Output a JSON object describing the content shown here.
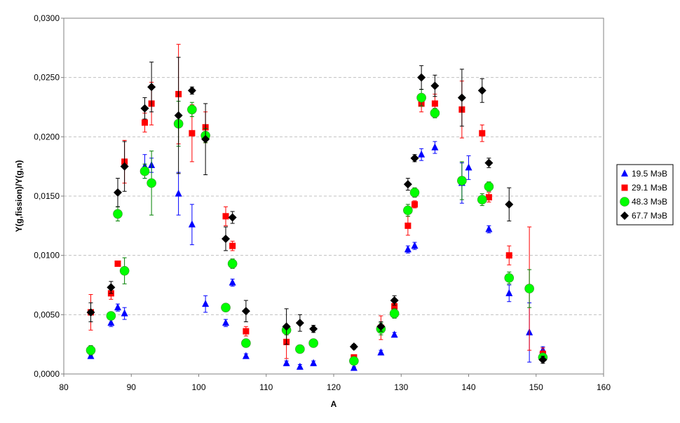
{
  "chart_data": {
    "type": "scatter",
    "xlabel": "A",
    "ylabel": "Y(g,fission)/Y(g,n)",
    "xlim": [
      80,
      160
    ],
    "ylim": [
      0,
      0.03
    ],
    "x_ticks": [
      80,
      90,
      100,
      110,
      120,
      130,
      140,
      150,
      160
    ],
    "x_tick_labels": [
      "80",
      "90",
      "100",
      "110",
      "120",
      "130",
      "140",
      "150",
      "160"
    ],
    "y_ticks": [
      0,
      0.005,
      0.01,
      0.015,
      0.02,
      0.025,
      0.03
    ],
    "y_tick_labels": [
      "0,0000",
      "0,0050",
      "0,0100",
      "0,0150",
      "0,0200",
      "0,0250",
      "0,0300"
    ],
    "grid": "horizontal dashed",
    "legend_position": "right",
    "series": [
      {
        "name": "19.5 МэВ",
        "marker": "triangle",
        "color": "#0000ff",
        "points": [
          {
            "x": 84,
            "y": 0.0015,
            "err": 0.0002
          },
          {
            "x": 87,
            "y": 0.0043,
            "err": 0.0003
          },
          {
            "x": 88,
            "y": 0.0056,
            "err": 0.0003
          },
          {
            "x": 89,
            "y": 0.0051,
            "err": 0.0005
          },
          {
            "x": 92,
            "y": 0.0175,
            "err": 0.001
          },
          {
            "x": 93,
            "y": 0.0176,
            "err": 0.0006
          },
          {
            "x": 97,
            "y": 0.0152,
            "err": 0.0018
          },
          {
            "x": 99,
            "y": 0.0126,
            "err": 0.0017
          },
          {
            "x": 101,
            "y": 0.0059,
            "err": 0.0007
          },
          {
            "x": 104,
            "y": 0.0043,
            "err": 0.0003
          },
          {
            "x": 105,
            "y": 0.0077,
            "err": 0.0003
          },
          {
            "x": 107,
            "y": 0.0015,
            "err": 0.0002
          },
          {
            "x": 113,
            "y": 0.0009,
            "err": 0.0002
          },
          {
            "x": 115,
            "y": 0.0006,
            "err": 0.0002
          },
          {
            "x": 117,
            "y": 0.0009,
            "err": 0.0002
          },
          {
            "x": 123,
            "y": 0.0005,
            "err": 0.0001
          },
          {
            "x": 127,
            "y": 0.0018,
            "err": 0.0002
          },
          {
            "x": 129,
            "y": 0.0033,
            "err": 0.0002
          },
          {
            "x": 131,
            "y": 0.0105,
            "err": 0.0003
          },
          {
            "x": 132,
            "y": 0.0108,
            "err": 0.0003
          },
          {
            "x": 133,
            "y": 0.0185,
            "err": 0.0005
          },
          {
            "x": 135,
            "y": 0.0191,
            "err": 0.0005
          },
          {
            "x": 139,
            "y": 0.0161,
            "err": 0.0017
          },
          {
            "x": 140,
            "y": 0.0174,
            "err": 0.001
          },
          {
            "x": 143,
            "y": 0.0122,
            "err": 0.0003
          },
          {
            "x": 146,
            "y": 0.0068,
            "err": 0.0007
          },
          {
            "x": 149,
            "y": 0.0035,
            "err": 0.0025
          },
          {
            "x": 151,
            "y": 0.002,
            "err": 0.0003
          }
        ]
      },
      {
        "name": "29.1 МэВ",
        "marker": "square",
        "color": "#ff0000",
        "points": [
          {
            "x": 84,
            "y": 0.0052,
            "err": 0.0015
          },
          {
            "x": 87,
            "y": 0.0068,
            "err": 0.0005
          },
          {
            "x": 88,
            "y": 0.0093,
            "err": 0.0002
          },
          {
            "x": 89,
            "y": 0.0179,
            "err": 0.0018
          },
          {
            "x": 92,
            "y": 0.0212,
            "err": 0.0008
          },
          {
            "x": 93,
            "y": 0.0228,
            "err": 0.0018
          },
          {
            "x": 97,
            "y": 0.0236,
            "err": 0.0042
          },
          {
            "x": 99,
            "y": 0.0203,
            "err": 0.0024
          },
          {
            "x": 101,
            "y": 0.0208,
            "err": 0.0013
          },
          {
            "x": 104,
            "y": 0.0133,
            "err": 0.0008
          },
          {
            "x": 105,
            "y": 0.0108,
            "err": 0.0004
          },
          {
            "x": 107,
            "y": 0.0036,
            "err": 0.0004
          },
          {
            "x": 113,
            "y": 0.0027,
            "err": 0.0014
          },
          {
            "x": 123,
            "y": 0.0014,
            "err": 0.0002
          },
          {
            "x": 127,
            "y": 0.0039,
            "err": 0.001
          },
          {
            "x": 129,
            "y": 0.0057,
            "err": 0.0003
          },
          {
            "x": 131,
            "y": 0.0125,
            "err": 0.0008
          },
          {
            "x": 132,
            "y": 0.0143,
            "err": 0.0003
          },
          {
            "x": 133,
            "y": 0.0228,
            "err": 0.0007
          },
          {
            "x": 135,
            "y": 0.0228,
            "err": 0.0008
          },
          {
            "x": 139,
            "y": 0.0223,
            "err": 0.0024
          },
          {
            "x": 142,
            "y": 0.0203,
            "err": 0.0007
          },
          {
            "x": 143,
            "y": 0.0149,
            "err": 0.0004
          },
          {
            "x": 146,
            "y": 0.01,
            "err": 0.0008
          },
          {
            "x": 149,
            "y": 0.0072,
            "err": 0.0052
          },
          {
            "x": 151,
            "y": 0.0017,
            "err": 0.0005
          }
        ]
      },
      {
        "name": "48.3 МэВ",
        "marker": "circle",
        "color": "#00ff00",
        "points": [
          {
            "x": 84,
            "y": 0.002,
            "err": 0.0004
          },
          {
            "x": 87,
            "y": 0.0049,
            "err": 0.0003
          },
          {
            "x": 88,
            "y": 0.0135,
            "err": 0.0006
          },
          {
            "x": 89,
            "y": 0.0087,
            "err": 0.0011
          },
          {
            "x": 92,
            "y": 0.0171,
            "err": 0.0006
          },
          {
            "x": 93,
            "y": 0.0161,
            "err": 0.0027
          },
          {
            "x": 97,
            "y": 0.0211,
            "err": 0.0019
          },
          {
            "x": 99,
            "y": 0.0223,
            "err": 0.0006
          },
          {
            "x": 101,
            "y": 0.0201,
            "err": 0.0006
          },
          {
            "x": 104,
            "y": 0.0056,
            "err": 0.0003
          },
          {
            "x": 105,
            "y": 0.0093,
            "err": 0.0004
          },
          {
            "x": 107,
            "y": 0.0026,
            "err": 0.0003
          },
          {
            "x": 113,
            "y": 0.0037,
            "err": 0.0004
          },
          {
            "x": 115,
            "y": 0.0021,
            "err": 0.0003
          },
          {
            "x": 117,
            "y": 0.0026,
            "err": 0.0003
          },
          {
            "x": 123,
            "y": 0.0011,
            "err": 0.0002
          },
          {
            "x": 127,
            "y": 0.0038,
            "err": 0.0005
          },
          {
            "x": 129,
            "y": 0.0051,
            "err": 0.0004
          },
          {
            "x": 131,
            "y": 0.0138,
            "err": 0.0005
          },
          {
            "x": 132,
            "y": 0.0153,
            "err": 0.0004
          },
          {
            "x": 133,
            "y": 0.0233,
            "err": 0.0007
          },
          {
            "x": 135,
            "y": 0.022,
            "err": 0.0004
          },
          {
            "x": 139,
            "y": 0.0163,
            "err": 0.0016
          },
          {
            "x": 142,
            "y": 0.0147,
            "err": 0.0005
          },
          {
            "x": 143,
            "y": 0.0158,
            "err": 0.0004
          },
          {
            "x": 146,
            "y": 0.0081,
            "err": 0.0005
          },
          {
            "x": 149,
            "y": 0.0072,
            "err": 0.0016
          },
          {
            "x": 151,
            "y": 0.0014,
            "err": 0.0002
          }
        ]
      },
      {
        "name": "67.7 МэВ",
        "marker": "diamond",
        "color": "#000000",
        "points": [
          {
            "x": 84,
            "y": 0.0052,
            "err": 0.0008
          },
          {
            "x": 87,
            "y": 0.0073,
            "err": 0.0005
          },
          {
            "x": 88,
            "y": 0.0153,
            "err": 0.0012
          },
          {
            "x": 89,
            "y": 0.0175,
            "err": 0.0021
          },
          {
            "x": 92,
            "y": 0.0224,
            "err": 0.0009
          },
          {
            "x": 93,
            "y": 0.0242,
            "err": 0.0021
          },
          {
            "x": 97,
            "y": 0.0218,
            "err": 0.0049
          },
          {
            "x": 99,
            "y": 0.0239,
            "err": 0.0003
          },
          {
            "x": 101,
            "y": 0.0198,
            "err": 0.003
          },
          {
            "x": 104,
            "y": 0.0114,
            "err": 0.001
          },
          {
            "x": 105,
            "y": 0.0132,
            "err": 0.0005
          },
          {
            "x": 107,
            "y": 0.0053,
            "err": 0.0009
          },
          {
            "x": 113,
            "y": 0.004,
            "err": 0.0015
          },
          {
            "x": 115,
            "y": 0.0043,
            "err": 0.0007
          },
          {
            "x": 117,
            "y": 0.0038,
            "err": 0.0003
          },
          {
            "x": 123,
            "y": 0.0023,
            "err": 0.0002
          },
          {
            "x": 127,
            "y": 0.004,
            "err": 0.0004
          },
          {
            "x": 129,
            "y": 0.0062,
            "err": 0.0004
          },
          {
            "x": 131,
            "y": 0.016,
            "err": 0.0005
          },
          {
            "x": 132,
            "y": 0.0182,
            "err": 0.0003
          },
          {
            "x": 133,
            "y": 0.025,
            "err": 0.001
          },
          {
            "x": 135,
            "y": 0.0243,
            "err": 0.0009
          },
          {
            "x": 139,
            "y": 0.0233,
            "err": 0.0024
          },
          {
            "x": 142,
            "y": 0.0239,
            "err": 0.001
          },
          {
            "x": 143,
            "y": 0.0178,
            "err": 0.0004
          },
          {
            "x": 146,
            "y": 0.0143,
            "err": 0.0014
          },
          {
            "x": 151,
            "y": 0.0012,
            "err": 0.0003
          }
        ]
      }
    ]
  }
}
